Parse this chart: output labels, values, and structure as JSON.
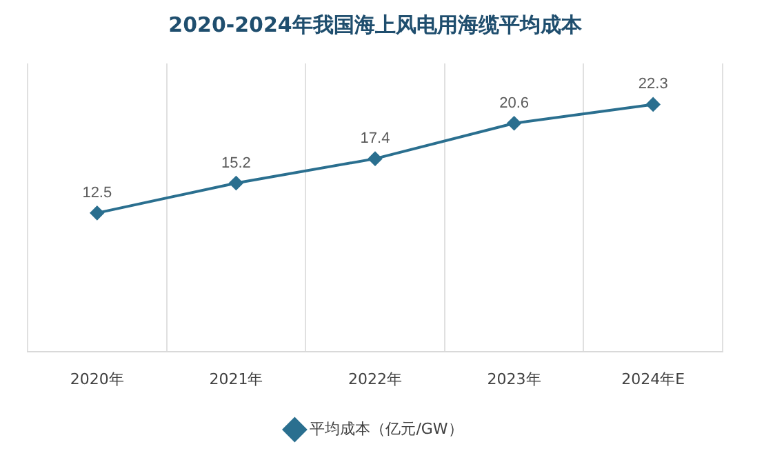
{
  "chart_data": {
    "type": "line",
    "title": "2020-2024年我国海上风电用海缆平均成本",
    "categories": [
      "2020年",
      "2021年",
      "2022年",
      "2023年",
      "2024年E"
    ],
    "series": [
      {
        "name": "平均成本（亿元/GW）",
        "color": "#2a6f8f",
        "values": [
          12.5,
          15.2,
          17.4,
          20.6,
          22.3
        ]
      }
    ],
    "ylim": [
      0,
      26
    ],
    "tick_labels": "x",
    "data_labels": true,
    "grid": "x",
    "legend": "bottom",
    "marker": "diamond",
    "line_style": "solid"
  }
}
